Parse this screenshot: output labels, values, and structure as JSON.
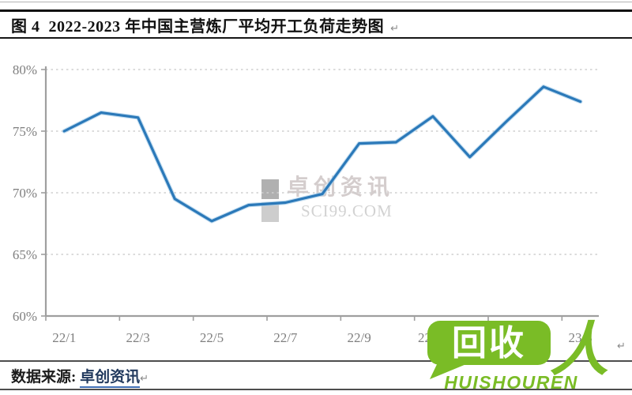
{
  "header": {
    "title": "图 4  2022-2023 年中国主营炼厂平均开工负荷走势图",
    "return_mark": "↵"
  },
  "chart_data": {
    "type": "line",
    "title": "2022-2023 年中国主营炼厂平均开工负荷走势图",
    "x": [
      "22/1",
      "22/2",
      "22/3",
      "22/4",
      "22/5",
      "22/6",
      "22/7",
      "22/8",
      "22/9",
      "22/10",
      "22/11",
      "22/12",
      "23/1",
      "23/2",
      "23/3"
    ],
    "values": [
      75.0,
      76.5,
      76.1,
      69.5,
      67.7,
      69.0,
      69.2,
      69.9,
      74.0,
      74.1,
      76.2,
      72.9,
      75.8,
      78.6,
      77.4
    ],
    "ylim": [
      60,
      80
    ],
    "yticks": [
      60,
      65,
      70,
      75,
      80
    ],
    "ytick_suffix": "%",
    "xtick_label_interval": 2,
    "grid": "horizontal-dashed",
    "legend": "none",
    "line_color": "#2b79b9",
    "line_halo_color": "#a9cfe9",
    "axis_color": "#9f9f9f",
    "grid_color": "#cfcfcf"
  },
  "watermark": {
    "name": "卓创资讯",
    "domain": "SCI99.COM"
  },
  "source_row": {
    "label": "数据来源: ",
    "link": "卓创资讯",
    "return_mark": "↵"
  },
  "overlay_logo": {
    "bubble_text": "回收",
    "person_glyph": "人",
    "subtext": "HUISHOUREN",
    "color": "#7abc26"
  },
  "misc": {
    "chart_return_mark": "↵"
  }
}
